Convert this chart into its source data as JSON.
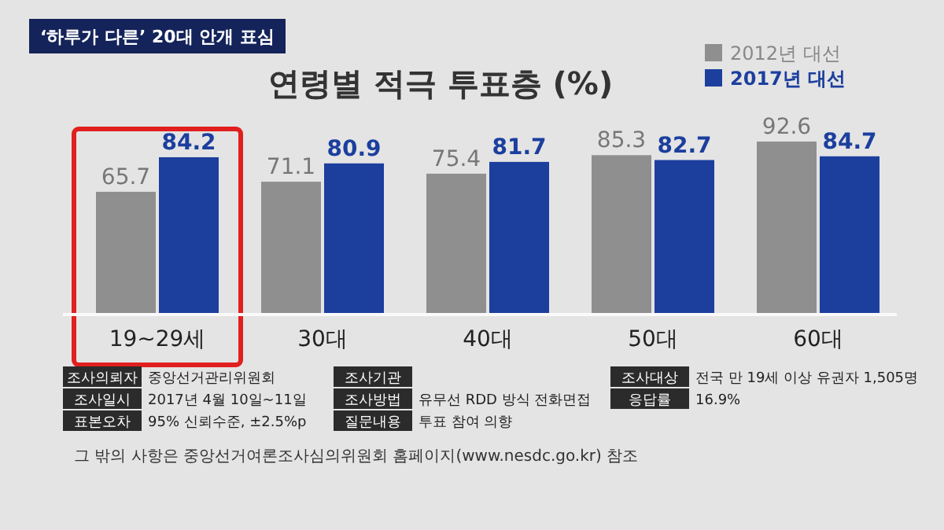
{
  "chart_data": {
    "type": "bar",
    "title": "연령별 적극 투표층 (%)",
    "subtitle": "‘하루가 다른’ 20대 안개 표심",
    "categories": [
      "19~29세",
      "30대",
      "40대",
      "50대",
      "60대"
    ],
    "series": [
      {
        "name": "2012년 대선",
        "color": "#8f8f8f",
        "values": [
          65.7,
          71.1,
          75.4,
          85.3,
          92.6
        ]
      },
      {
        "name": "2017년 대선",
        "color": "#1c3f9e",
        "values": [
          84.2,
          80.9,
          81.7,
          82.7,
          84.7
        ]
      }
    ],
    "data_labels": true,
    "legend": "top right",
    "annotations": [
      "조사의뢰자",
      "중앙선거관리위원회",
      "조사기관",
      "조사대상",
      "전국 만 19세 이상 유권자 1,505명",
      "조사일시",
      "2017년 4월 10일~11일",
      "조사방법",
      "유무선 RDD 방식 전화면접",
      "응답률",
      "16.9%",
      "표본오차",
      "95% 신뢰수준, ±2.5%p",
      "질문내용",
      "투표 참여 의향",
      "그 밖의 사항은 중앙선거여론조사심의위원회 홈페이지(www.nesdc.go.kr) 참조"
    ]
  }
}
